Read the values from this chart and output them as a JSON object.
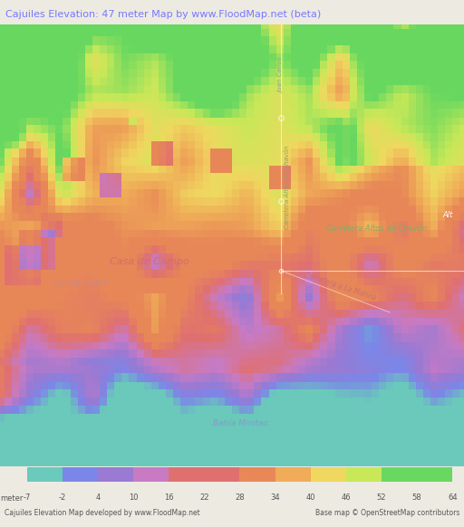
{
  "title": "Cajuiles Elevation: 47 meter Map by www.FloodMap.net (beta)",
  "title_color": "#7878ff",
  "title_bg": "#eae6de",
  "colorbar_labels": [
    "-7",
    "-2",
    "4",
    "10",
    "16",
    "22",
    "28",
    "34",
    "40",
    "46",
    "52",
    "58",
    "64"
  ],
  "colorbar_values": [
    -7,
    -2,
    4,
    10,
    16,
    22,
    28,
    34,
    40,
    46,
    52,
    58,
    64
  ],
  "cb_colors": [
    "#6acabb",
    "#7b87e8",
    "#9a7ad3",
    "#c87bc3",
    "#e07070",
    "#e07070",
    "#e88858",
    "#f0ac58",
    "#f0d860",
    "#c8e858",
    "#68d860",
    "#68d860"
  ],
  "bottom_left_text": "Cajuiles Elevation Map developed by www.FloodMap.net",
  "bottom_right_text": "Base map © OpenStreetMap contributors",
  "footer_bg": "#edeae2",
  "label_color": "#555555",
  "meter_label": "meter",
  "fig_width": 5.12,
  "fig_height": 5.82
}
